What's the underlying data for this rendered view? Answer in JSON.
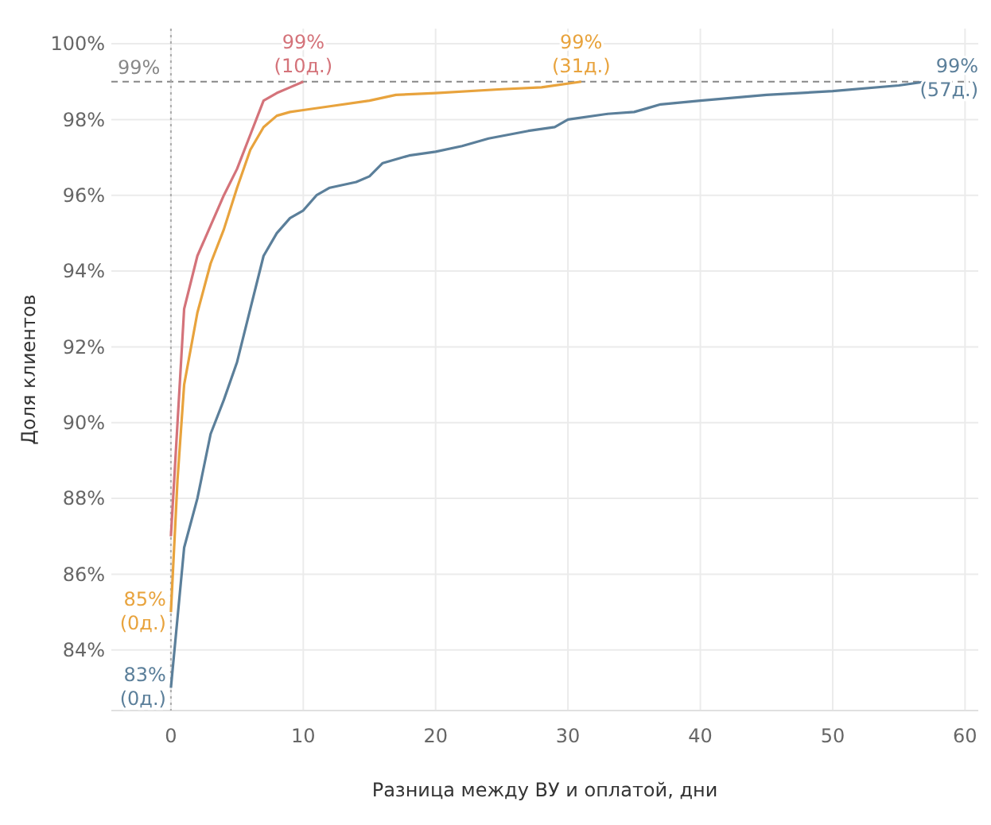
{
  "chart_data": {
    "type": "line",
    "xlabel": "Разница между ВУ и оплатой, дни",
    "ylabel": "Доля клиентов",
    "xlim": [
      -4.5,
      61
    ],
    "ylim": [
      82.4,
      100.4
    ],
    "xticks": [
      0,
      10,
      20,
      30,
      40,
      50,
      60
    ],
    "yticks": [
      {
        "value": 84,
        "label": "84%"
      },
      {
        "value": 86,
        "label": "86%"
      },
      {
        "value": 88,
        "label": "88%"
      },
      {
        "value": 90,
        "label": "90%"
      },
      {
        "value": 92,
        "label": "92%"
      },
      {
        "value": 94,
        "label": "94%"
      },
      {
        "value": 96,
        "label": "96%"
      },
      {
        "value": 98,
        "label": "98%"
      },
      {
        "value": 100,
        "label": "100%"
      }
    ],
    "grid": true,
    "marker": "none",
    "line_style": "solid",
    "series": [
      {
        "color": "#d4737a",
        "x": [
          0,
          0.5,
          1,
          2,
          3,
          4,
          5,
          6,
          7,
          8,
          9,
          10
        ],
        "values": [
          87,
          90,
          93,
          94.4,
          95.2,
          96,
          96.7,
          97.6,
          98.5,
          98.7,
          98.85,
          99
        ]
      },
      {
        "color": "#e8a33d",
        "x": [
          0,
          0.5,
          1,
          2,
          3,
          4,
          5,
          6,
          7,
          8,
          9,
          10,
          12,
          15,
          17,
          20,
          25,
          28,
          31
        ],
        "values": [
          85,
          88.5,
          91,
          92.9,
          94.2,
          95.1,
          96.2,
          97.2,
          97.8,
          98.1,
          98.2,
          98.25,
          98.35,
          98.5,
          98.65,
          98.7,
          98.8,
          98.85,
          99
        ]
      },
      {
        "color": "#5b7f9a",
        "x": [
          0,
          1,
          2,
          3,
          4,
          5,
          6,
          7,
          8,
          9,
          10,
          11,
          12,
          14,
          15,
          16,
          18,
          20,
          22,
          24,
          27,
          29,
          30,
          33,
          35,
          36,
          37,
          40,
          45,
          50,
          55,
          57
        ],
        "values": [
          83,
          86.7,
          88,
          89.7,
          90.6,
          91.6,
          93,
          94.4,
          95,
          95.4,
          95.6,
          96,
          96.2,
          96.35,
          96.5,
          96.85,
          97.05,
          97.15,
          97.3,
          97.5,
          97.7,
          97.8,
          98,
          98.15,
          98.2,
          98.3,
          98.4,
          98.5,
          98.65,
          98.75,
          98.9,
          99
        ]
      }
    ],
    "ref_lines": [
      {
        "axis": "y",
        "value": 99,
        "label": "99%",
        "color": "#888888",
        "line_style": "dashed"
      },
      {
        "axis": "x",
        "value": 0,
        "color": "#aaaaaa",
        "line_style": "dotted"
      }
    ],
    "annotations": [
      {
        "text": "99%\n(10д.)",
        "x": 10,
        "y": 99
      },
      {
        "text": "99%\n(31д.)",
        "x": 31,
        "y": 99
      },
      {
        "text": "99%\n(57д.)",
        "x": 57,
        "y": 99
      },
      {
        "text": "85%\n(0д.)",
        "x": 0,
        "y": 85
      },
      {
        "text": "83%\n(0д.)",
        "x": 0,
        "y": 83
      }
    ]
  }
}
